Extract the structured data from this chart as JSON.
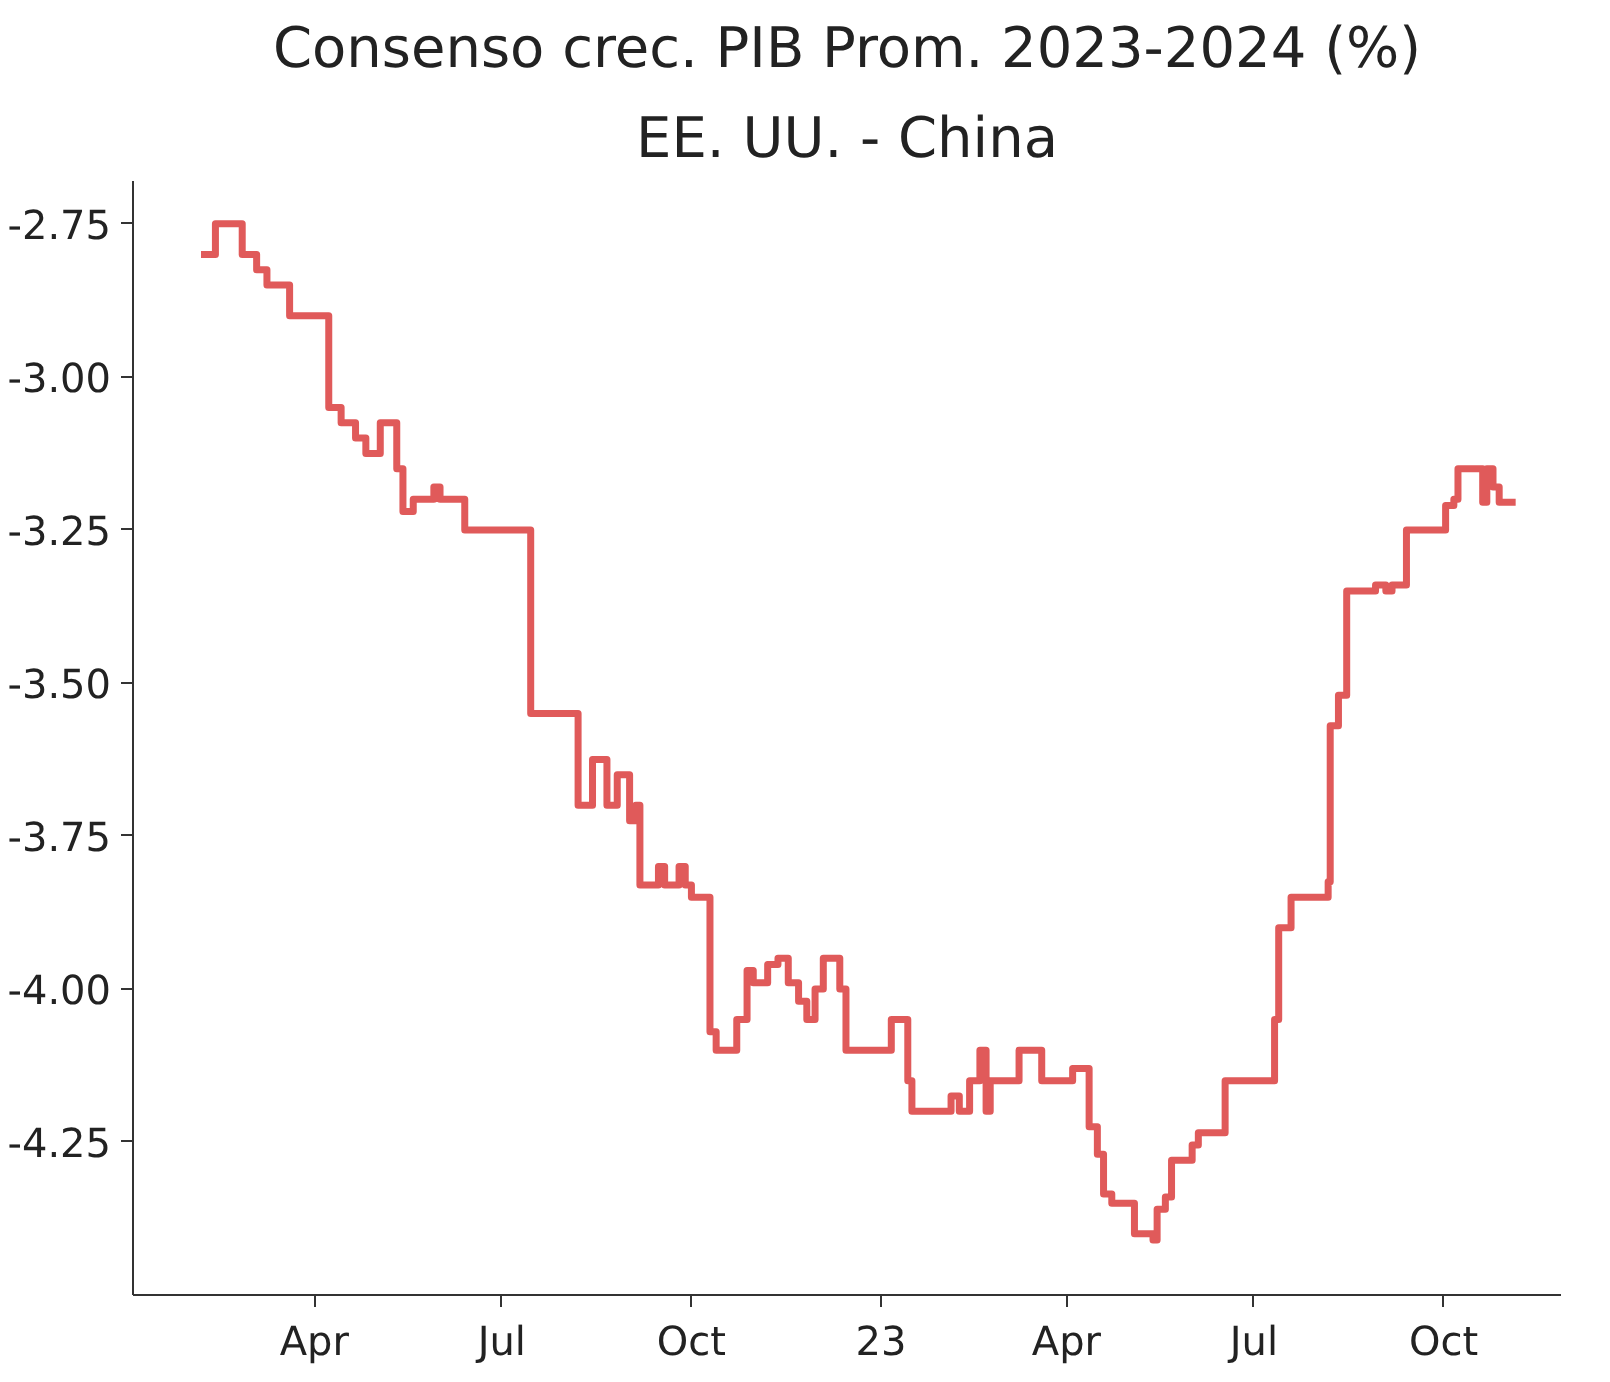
{
  "chart_data": {
    "type": "step",
    "title": "Consenso crec. PIB Prom. 2023-2024 (%)",
    "subtitle": "EE. UU. - China",
    "x": [
      "2022-02-05",
      "2022-02-12",
      "2022-02-25",
      "2022-03-04",
      "2022-03-09",
      "2022-03-20",
      "2022-04-08",
      "2022-04-14",
      "2022-04-21",
      "2022-04-26",
      "2022-05-03",
      "2022-05-11",
      "2022-05-14",
      "2022-05-19",
      "2022-05-29",
      "2022-06-01",
      "2022-06-13",
      "2022-07-15",
      "2022-08-07",
      "2022-08-14",
      "2022-08-21",
      "2022-08-26",
      "2022-09-01",
      "2022-09-04",
      "2022-09-06",
      "2022-09-15",
      "2022-09-18",
      "2022-09-25",
      "2022-09-28",
      "2022-10-01",
      "2022-10-10",
      "2022-10-13",
      "2022-10-23",
      "2022-10-28",
      "2022-10-31",
      "2022-11-07",
      "2022-11-12",
      "2022-11-17",
      "2022-11-22",
      "2022-11-26",
      "2022-11-30",
      "2022-12-04",
      "2022-12-12",
      "2022-12-15",
      "2023-01-06",
      "2023-01-14",
      "2023-01-16",
      "2023-02-04",
      "2023-02-08",
      "2023-02-13",
      "2023-02-18",
      "2023-02-21",
      "2023-02-23",
      "2023-03-09",
      "2023-03-20",
      "2023-04-04",
      "2023-04-12",
      "2023-04-16",
      "2023-04-19",
      "2023-04-23",
      "2023-05-04",
      "2023-05-13",
      "2023-05-15",
      "2023-05-19",
      "2023-05-22",
      "2023-06-01",
      "2023-06-04",
      "2023-06-17",
      "2023-07-11",
      "2023-07-13",
      "2023-07-19",
      "2023-08-06",
      "2023-08-07",
      "2023-08-11",
      "2023-08-15",
      "2023-08-29",
      "2023-09-03",
      "2023-09-06",
      "2023-09-13",
      "2023-10-02",
      "2023-10-06",
      "2023-10-08",
      "2023-10-20",
      "2023-10-22",
      "2023-10-25",
      "2023-10-28",
      "2023-11-05"
    ],
    "series": [
      {
        "color": "#e05a5a",
        "values": [
          -2.8,
          -2.75,
          -2.8,
          -2.825,
          -2.85,
          -2.9,
          -3.05,
          -3.075,
          -3.1,
          -3.125,
          -3.075,
          -3.15,
          -3.22,
          -3.2,
          -3.18,
          -3.2,
          -3.25,
          -3.55,
          -3.7,
          -3.625,
          -3.7,
          -3.65,
          -3.725,
          -3.7,
          -3.83,
          -3.8,
          -3.83,
          -3.8,
          -3.83,
          -3.85,
          -4.07,
          -4.1,
          -4.05,
          -3.97,
          -3.99,
          -3.96,
          -3.95,
          -3.99,
          -4.02,
          -4.05,
          -4.0,
          -3.95,
          -4.0,
          -4.1,
          -4.05,
          -4.15,
          -4.2,
          -4.175,
          -4.2,
          -4.15,
          -4.1,
          -4.2,
          -4.15,
          -4.1,
          -4.15,
          -4.13,
          -4.225,
          -4.27,
          -4.335,
          -4.35,
          -4.4,
          -4.41,
          -4.36,
          -4.34,
          -4.28,
          -4.255,
          -4.235,
          -4.15,
          -4.05,
          -3.9,
          -3.85,
          -3.825,
          -3.57,
          -3.52,
          -3.35,
          -3.34,
          -3.35,
          -3.34,
          -3.25,
          -3.21,
          -3.2,
          -3.15,
          -3.205,
          -3.15,
          -3.18,
          -3.205,
          -3.205
        ]
      }
    ],
    "xlim": [
      "2022-01-03",
      "2023-11-27"
    ],
    "xticks": [
      {
        "value": "2022-04-01",
        "label": "Apr"
      },
      {
        "value": "2022-07-01",
        "label": "Jul"
      },
      {
        "value": "2022-10-01",
        "label": "Oct"
      },
      {
        "value": "2023-01-01",
        "label": "23"
      },
      {
        "value": "2023-04-01",
        "label": "Apr"
      },
      {
        "value": "2023-07-01",
        "label": "Jul"
      },
      {
        "value": "2023-10-01",
        "label": "Oct"
      }
    ],
    "ylim": [
      -4.5,
      -2.68
    ],
    "yticks": [
      {
        "value": -2.75,
        "label": "-2.75"
      },
      {
        "value": -3.0,
        "label": "-3.00"
      },
      {
        "value": -3.25,
        "label": "-3.25"
      },
      {
        "value": -3.5,
        "label": "-3.50"
      },
      {
        "value": -3.75,
        "label": "-3.75"
      },
      {
        "value": -4.0,
        "label": "-4.00"
      },
      {
        "value": -4.25,
        "label": "-4.25"
      }
    ],
    "grid": false
  }
}
